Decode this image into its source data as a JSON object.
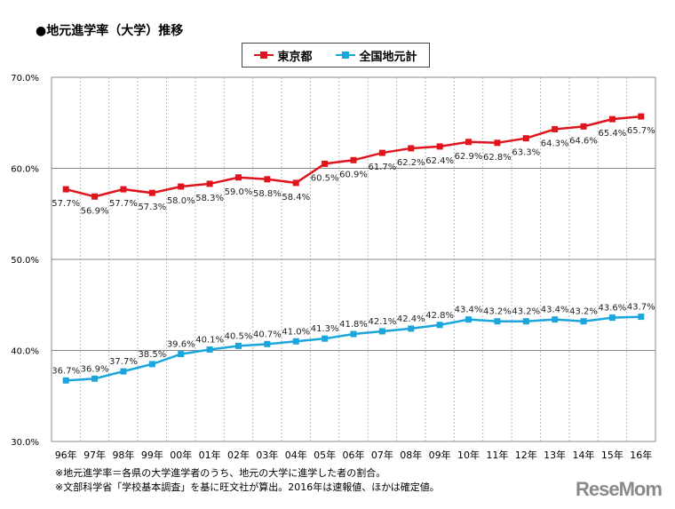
{
  "chart_data": {
    "type": "line",
    "title": "●地元進学率（大学）推移",
    "categories": [
      "96年",
      "97年",
      "98年",
      "99年",
      "00年",
      "01年",
      "02年",
      "03年",
      "04年",
      "05年",
      "06年",
      "07年",
      "08年",
      "09年",
      "10年",
      "11年",
      "12年",
      "13年",
      "14年",
      "15年",
      "16年"
    ],
    "series": [
      {
        "name": "東京都",
        "color": "#e0141c",
        "values": [
          57.7,
          56.9,
          57.7,
          57.3,
          58.0,
          58.3,
          59.0,
          58.8,
          58.4,
          60.5,
          60.9,
          61.7,
          62.2,
          62.4,
          62.9,
          62.8,
          63.3,
          64.3,
          64.6,
          65.4,
          65.7
        ]
      },
      {
        "name": "全国地元計",
        "color": "#1aa6dc",
        "values": [
          36.7,
          36.9,
          37.7,
          38.5,
          39.6,
          40.1,
          40.5,
          40.7,
          41.0,
          41.3,
          41.8,
          42.1,
          42.4,
          42.8,
          43.4,
          43.2,
          43.2,
          43.4,
          43.2,
          43.6,
          43.7
        ]
      }
    ],
    "ylim": [
      30,
      70
    ],
    "yticks": [
      "30.0%",
      "40.0%",
      "50.0%",
      "60.0%",
      "70.0%"
    ],
    "grid": "horizontal solid, vertical dashed",
    "legend": "top-center"
  },
  "notes": [
    "※地元進学率＝各県の大学進学者のうち、地元の大学に進学した者の割合。",
    "※文部科学省「学校基本調査」を基に旺文社が算出。2016年は速報値、ほかは確定値。"
  ],
  "logo": "ReseMom"
}
